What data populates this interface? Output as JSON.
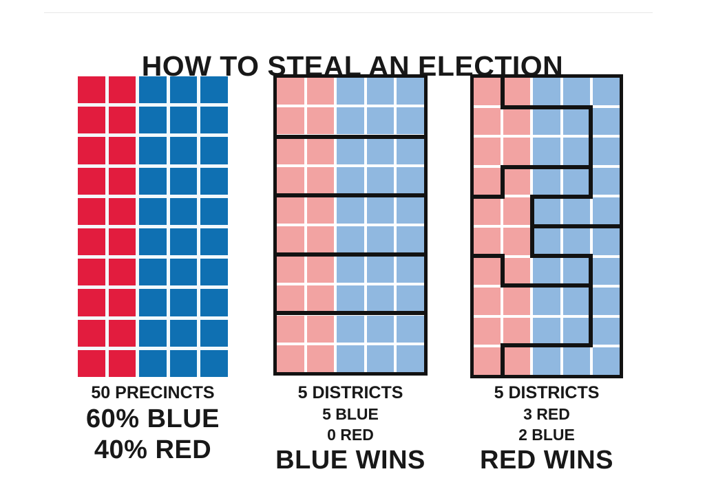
{
  "title": "HOW TO STEAL AN ELECTION",
  "colors": {
    "bright_red": "#e21c3e",
    "bright_blue": "#0f70b2",
    "pale_red": "#f2a3a2",
    "pale_blue": "#90b8e0",
    "district_line": "#121212",
    "gap_bright": "#f3f9fc",
    "gap_pale": "#ffffff",
    "text": "#181818"
  },
  "panels": [
    {
      "id": "precincts",
      "caption_lines": [
        {
          "text": "50 PRECINCTS",
          "cls": "cap-sm"
        },
        {
          "text": "60% BLUE",
          "cls": "cap-lg"
        },
        {
          "text": "40% RED",
          "cls": "cap-lg"
        }
      ],
      "grid": {
        "rows": 10,
        "cols": 5,
        "red_cols": 2,
        "palette": "bright",
        "bordered": false
      },
      "walls": []
    },
    {
      "id": "districts-fair",
      "caption_lines": [
        {
          "text": "5 DISTRICTS",
          "cls": "cap-sm"
        },
        {
          "text": "5 BLUE",
          "cls": "cap-xs"
        },
        {
          "text": "0 RED",
          "cls": "cap-xs"
        },
        {
          "text": "BLUE WINS",
          "cls": "cap-lg"
        }
      ],
      "grid": {
        "rows": 10,
        "cols": 5,
        "red_cols": 2,
        "palette": "pale",
        "bordered": true
      },
      "walls": [
        {
          "o": "h",
          "r": 2,
          "c1": 0,
          "c2": 5
        },
        {
          "o": "h",
          "r": 4,
          "c1": 0,
          "c2": 5
        },
        {
          "o": "h",
          "r": 6,
          "c1": 0,
          "c2": 5
        },
        {
          "o": "h",
          "r": 8,
          "c1": 0,
          "c2": 5
        }
      ]
    },
    {
      "id": "districts-gerrymandered",
      "caption_lines": [
        {
          "text": "5 DISTRICTS",
          "cls": "cap-sm"
        },
        {
          "text": "3 RED",
          "cls": "cap-xs"
        },
        {
          "text": "2 BLUE",
          "cls": "cap-xs"
        },
        {
          "text": "RED WINS",
          "cls": "cap-lg"
        }
      ],
      "grid": {
        "rows": 10,
        "cols": 5,
        "red_cols": 2,
        "palette": "pale",
        "bordered": true
      },
      "walls": [
        {
          "o": "v",
          "c": 1,
          "r1": 0,
          "r2": 1
        },
        {
          "o": "h",
          "r": 1,
          "c1": 1,
          "c2": 4
        },
        {
          "o": "v",
          "c": 4,
          "r1": 1,
          "r2": 4
        },
        {
          "o": "h",
          "r": 3,
          "c1": 1,
          "c2": 4
        },
        {
          "o": "v",
          "c": 1,
          "r1": 3,
          "r2": 4
        },
        {
          "o": "h",
          "r": 4,
          "c1": 0,
          "c2": 1
        },
        {
          "o": "h",
          "r": 4,
          "c1": 2,
          "c2": 4
        },
        {
          "o": "v",
          "c": 2,
          "r1": 4,
          "r2": 6
        },
        {
          "o": "h",
          "r": 5,
          "c1": 2,
          "c2": 5
        },
        {
          "o": "h",
          "r": 6,
          "c1": 0,
          "c2": 1
        },
        {
          "o": "h",
          "r": 6,
          "c1": 2,
          "c2": 4
        },
        {
          "o": "v",
          "c": 1,
          "r1": 6,
          "r2": 7
        },
        {
          "o": "h",
          "r": 7,
          "c1": 1,
          "c2": 4
        },
        {
          "o": "v",
          "c": 4,
          "r1": 6,
          "r2": 9
        },
        {
          "o": "h",
          "r": 9,
          "c1": 1,
          "c2": 4
        },
        {
          "o": "v",
          "c": 1,
          "r1": 9,
          "r2": 10
        }
      ]
    }
  ],
  "layout_note": ""
}
